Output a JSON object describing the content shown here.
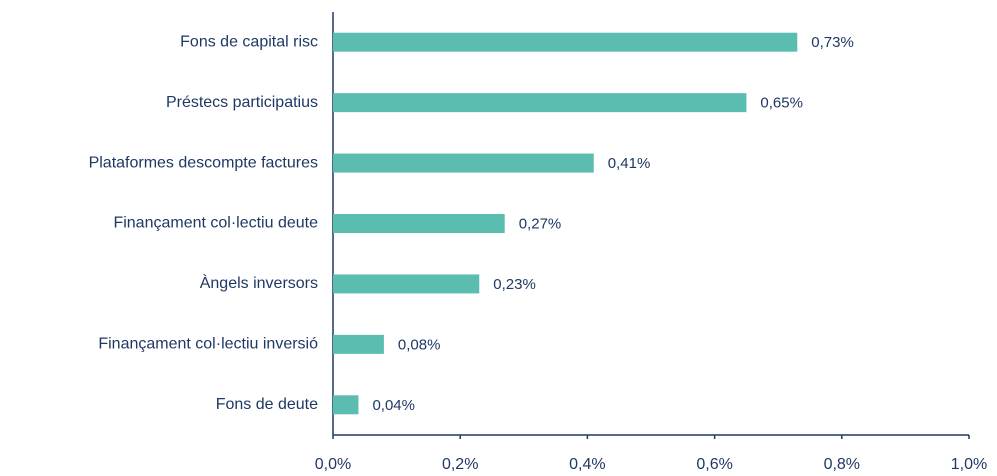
{
  "chart_data": {
    "type": "bar",
    "orientation": "horizontal",
    "categories": [
      "Fons de capital risc",
      "Préstecs participatius",
      "Plataformes descompte factures",
      "Finançament col·lectiu deute",
      "Àngels inversors",
      "Finançament col·lectiu inversió",
      "Fons de deute"
    ],
    "values": [
      0.73,
      0.65,
      0.41,
      0.27,
      0.23,
      0.08,
      0.04
    ],
    "value_labels": [
      "0,73%",
      "0,65%",
      "0,41%",
      "0,27%",
      "0,23%",
      "0,08%",
      "0,04%"
    ],
    "color": "#5bbdb0",
    "xlim": [
      0,
      1.0
    ],
    "xticks": [
      {
        "value": 0,
        "label": "0,0%"
      },
      {
        "value": 0.2,
        "label": "0,2%"
      },
      {
        "value": 0.4,
        "label": "0,4%"
      },
      {
        "value": 0.6,
        "label": "0,6%"
      },
      {
        "value": 0.8,
        "label": "0,8%"
      },
      {
        "value": 1.0,
        "label": "1,0%"
      }
    ],
    "grid": false
  }
}
